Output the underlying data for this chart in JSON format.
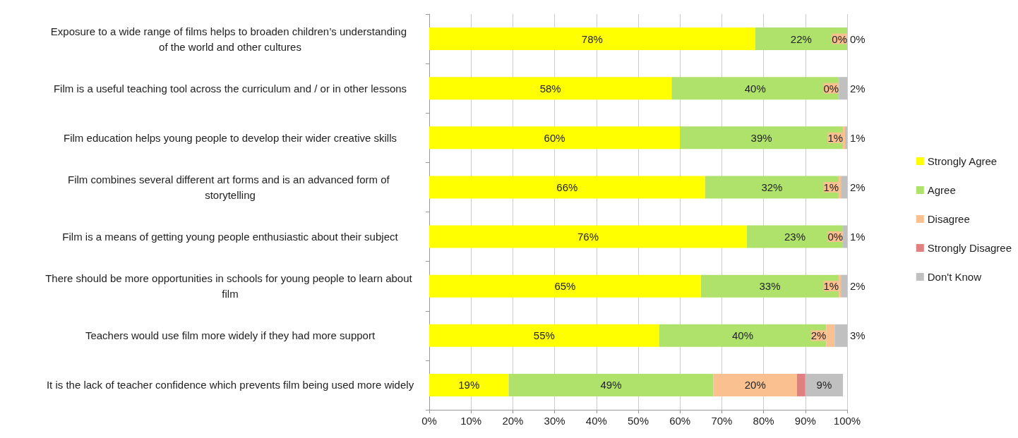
{
  "chart_data": {
    "type": "bar",
    "orientation": "horizontal",
    "stacked": true,
    "categories": [
      "Exposure to a wide range of films helps to broaden children’s understanding of the world and other cultures",
      "Film is a useful teaching tool across the curriculum and / or in other lessons",
      "Film education helps young people to develop their wider creative skills",
      "Film combines several different art forms and is an advanced form of storytelling",
      "Film is a means of getting young people enthusiastic about their subject",
      "There should be more opportunities in schools for young people to learn about film",
      "Teachers would use film more widely if they had more support",
      "It is the lack of teacher confidence which prevents film being used more widely"
    ],
    "series": [
      {
        "name": "Strongly Agree",
        "color": "#ffff00",
        "values": [
          78,
          58,
          60,
          66,
          76,
          65,
          55,
          19
        ],
        "value_labels": [
          "78%",
          "58%",
          "60%",
          "66%",
          "76%",
          "65%",
          "55%",
          "19%"
        ]
      },
      {
        "name": "Agree",
        "color": "#aee26b",
        "values": [
          22,
          40,
          39,
          32,
          23,
          33,
          40,
          49
        ],
        "value_labels": [
          "22%",
          "40%",
          "39%",
          "32%",
          "23%",
          "33%",
          "40%",
          "49%"
        ]
      },
      {
        "name": "Disagree",
        "color": "#fac090",
        "values": [
          0,
          0,
          0.5,
          0.5,
          0,
          0.5,
          2,
          20
        ],
        "value_labels": [
          "0%",
          "0%",
          "1%",
          "1%",
          "0%",
          "1%",
          "2%",
          "20%"
        ]
      },
      {
        "name": "Strongly Disagree",
        "color": "#e08080",
        "values": [
          0,
          0,
          0,
          0,
          0,
          0,
          0,
          2
        ],
        "value_labels": [
          null,
          null,
          null,
          null,
          null,
          null,
          null,
          null
        ]
      },
      {
        "name": "Don't Know",
        "color": "#c0c0c0",
        "values": [
          0,
          2,
          0.5,
          1.5,
          1,
          1.5,
          3,
          9
        ],
        "value_labels": [
          "0%",
          "2%",
          "1%",
          "2%",
          "1%",
          "2%",
          "3%",
          "9%"
        ]
      }
    ],
    "xlim": [
      0,
      100
    ],
    "xticks": [
      {
        "value": 0,
        "label": "0%"
      },
      {
        "value": 10,
        "label": "10%"
      },
      {
        "value": 20,
        "label": "20%"
      },
      {
        "value": 30,
        "label": "30%"
      },
      {
        "value": 40,
        "label": "40%"
      },
      {
        "value": 50,
        "label": "50%"
      },
      {
        "value": 60,
        "label": "60%"
      },
      {
        "value": 70,
        "label": "70%"
      },
      {
        "value": 80,
        "label": "80%"
      },
      {
        "value": 90,
        "label": "90%"
      },
      {
        "value": 100,
        "label": "100%"
      }
    ],
    "grid": "x",
    "legend": "right"
  }
}
